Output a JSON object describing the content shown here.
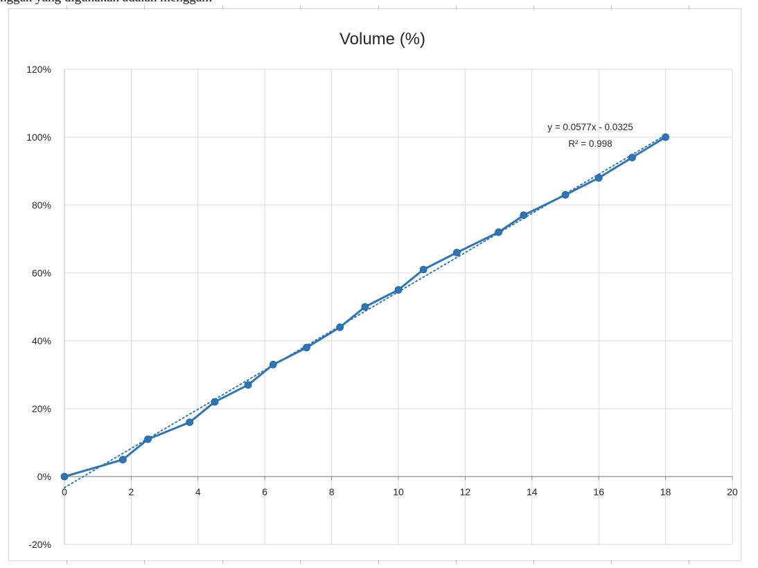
{
  "caption_fragment": "nggan yang digunakan adalah menggam",
  "chart_data": {
    "type": "scatter",
    "title": "Volume (%)",
    "xlabel": "",
    "ylabel": "",
    "xlim": [
      0,
      20
    ],
    "ylim": [
      -0.2,
      1.2
    ],
    "x_ticks": [
      0,
      2,
      4,
      6,
      8,
      10,
      12,
      14,
      16,
      18,
      20
    ],
    "x_tick_labels": [
      "0",
      "2",
      "4",
      "6",
      "8",
      "10",
      "12",
      "14",
      "16",
      "18",
      "20"
    ],
    "y_ticks": [
      -0.2,
      0,
      0.2,
      0.4,
      0.6,
      0.8,
      1.0,
      1.2
    ],
    "y_tick_labels": [
      "-20%",
      "0%",
      "20%",
      "40%",
      "60%",
      "80%",
      "100%",
      "120%"
    ],
    "grid": true,
    "legend": "none",
    "series": [
      {
        "x": [
          0,
          1.75,
          2.5,
          3.75,
          4.5,
          5.5,
          6.25,
          7.25,
          8.25,
          9.0,
          10.0,
          10.75,
          11.75,
          13.0,
          13.75,
          15.0,
          16.0,
          17.0,
          18.0
        ],
        "y": [
          0.0,
          0.05,
          0.11,
          0.16,
          0.22,
          0.27,
          0.33,
          0.38,
          0.44,
          0.5,
          0.55,
          0.61,
          0.66,
          0.72,
          0.77,
          0.83,
          0.88,
          0.94,
          1.0
        ],
        "color": "#2e75b6"
      }
    ],
    "trendline": {
      "type": "linear",
      "slope": 0.0577,
      "intercept": -0.0325,
      "equation": "y = 0.0577x - 0.0325",
      "r_squared": "R² = 0.998",
      "color": "#2e75b6",
      "style": "dotted"
    }
  }
}
